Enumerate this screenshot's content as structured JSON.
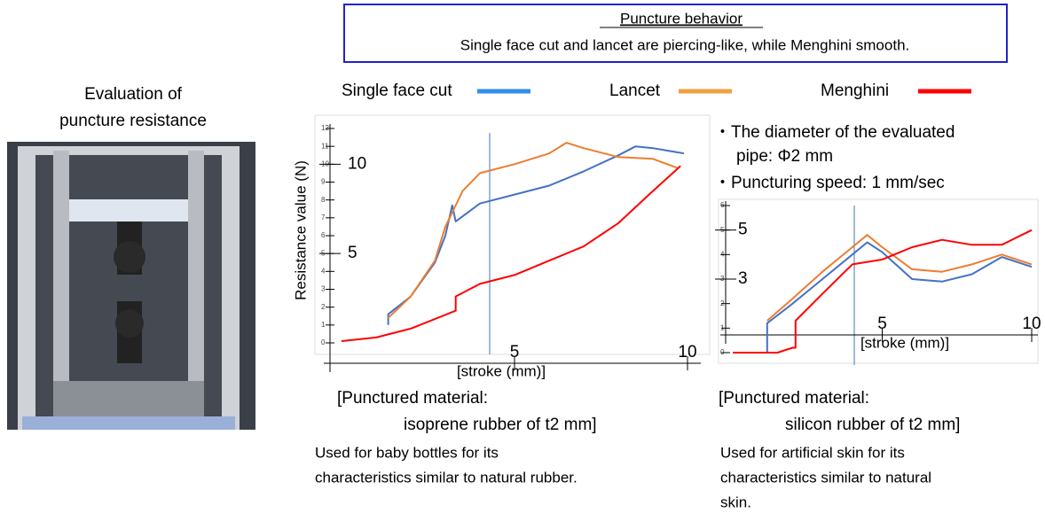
{
  "header": {
    "title": "Puncture behavior",
    "subtitle": "Single face cut and lancet are piercing-like, while Menghini smooth."
  },
  "photo_caption": [
    "Evaluation of",
    "puncture resistance"
  ],
  "notes": [
    "・The diameter of the evaluated",
    "pipe: Φ2 mm",
    "・Puncturing speed: 1 mm/sec"
  ],
  "captions": [
    {
      "material": [
        "[Punctured material:",
        "isoprene rubber of t2 mm]"
      ],
      "description": [
        "Used for baby bottles for its",
        "characteristics similar to natural rubber."
      ]
    },
    {
      "material": [
        "[Punctured material:",
        "silicon rubber of t2 mm]"
      ],
      "description": [
        "Used for artificial skin for its",
        "characteristics similar to natural",
        "skin."
      ]
    }
  ],
  "chart_data": [
    {
      "type": "line",
      "y_label": "Resistance value (N)",
      "x_label": "[stroke (mm)]",
      "xlim": [
        0,
        10
      ],
      "ylim": [
        0,
        12
      ],
      "yticks": [
        0,
        1,
        2,
        3,
        4,
        5,
        6,
        7,
        8,
        9,
        10,
        11,
        12
      ],
      "y_big_ticks": [
        10,
        5
      ],
      "xticks": [
        5,
        10
      ],
      "series": [
        {
          "name": "Single face cut",
          "color": "#4472c4",
          "legend_color": "#2e8ee8",
          "x": [
            1.35,
            1.35,
            2,
            2.7,
            3.0,
            3.2,
            3.3,
            4,
            5,
            6,
            7,
            8,
            8.5,
            9,
            9.9
          ],
          "values": [
            1.0,
            1.6,
            2.6,
            4.5,
            6.0,
            7.7,
            6.8,
            7.8,
            8.3,
            8.8,
            9.6,
            10.5,
            11.0,
            10.9,
            10.6
          ]
        },
        {
          "name": "Lancet",
          "color": "#ed7d31",
          "legend_color": "#f0a040",
          "x": [
            1.35,
            2,
            2.7,
            3.0,
            3.5,
            4,
            5,
            6,
            6.5,
            7,
            8,
            9,
            9.7
          ],
          "values": [
            1.4,
            2.6,
            4.6,
            6.5,
            8.5,
            9.5,
            10.0,
            10.6,
            11.2,
            10.9,
            10.4,
            10.3,
            9.8
          ]
        },
        {
          "name": "Menghini",
          "color": "#ff0000",
          "legend_color": "#ff0000",
          "x": [
            0,
            1,
            2,
            3.3,
            3.3,
            4,
            5,
            6,
            7,
            8,
            9,
            9.8
          ],
          "values": [
            0.1,
            0.3,
            0.8,
            1.8,
            2.6,
            3.3,
            3.8,
            4.6,
            5.4,
            6.7,
            8.5,
            9.9
          ]
        }
      ]
    },
    {
      "type": "line",
      "x_label": "[stroke (mm)]",
      "xlim": [
        0,
        10
      ],
      "ylim": [
        0,
        6
      ],
      "yticks": [
        0,
        1,
        2,
        3,
        4,
        5,
        6
      ],
      "y_big_ticks": [
        5,
        3
      ],
      "xticks": [
        5,
        10
      ],
      "series": [
        {
          "name": "Single face cut",
          "color": "#4472c4",
          "x": [
            1.15,
            1.15,
            2,
            3,
            4,
            4.5,
            5,
            6,
            7,
            8,
            9,
            10
          ],
          "values": [
            0,
            1.2,
            2.0,
            3.0,
            4.0,
            4.5,
            4.1,
            3.0,
            2.9,
            3.2,
            3.9,
            3.5
          ]
        },
        {
          "name": "Lancet",
          "color": "#ed7d31",
          "x": [
            1.15,
            2,
            3,
            4,
            4.5,
            5,
            6,
            7,
            8,
            9,
            10
          ],
          "values": [
            1.3,
            2.2,
            3.3,
            4.3,
            4.8,
            4.3,
            3.4,
            3.3,
            3.6,
            4.0,
            3.6
          ]
        },
        {
          "name": "Menghini",
          "color": "#ff0000",
          "x": [
            0,
            1.5,
            2,
            2.1,
            2.1,
            3,
            4,
            5,
            6,
            7,
            8,
            9,
            10
          ],
          "values": [
            0,
            0,
            0.2,
            0.2,
            1.3,
            2.4,
            3.6,
            3.8,
            4.3,
            4.6,
            4.4,
            4.4,
            5.0
          ]
        }
      ]
    }
  ]
}
